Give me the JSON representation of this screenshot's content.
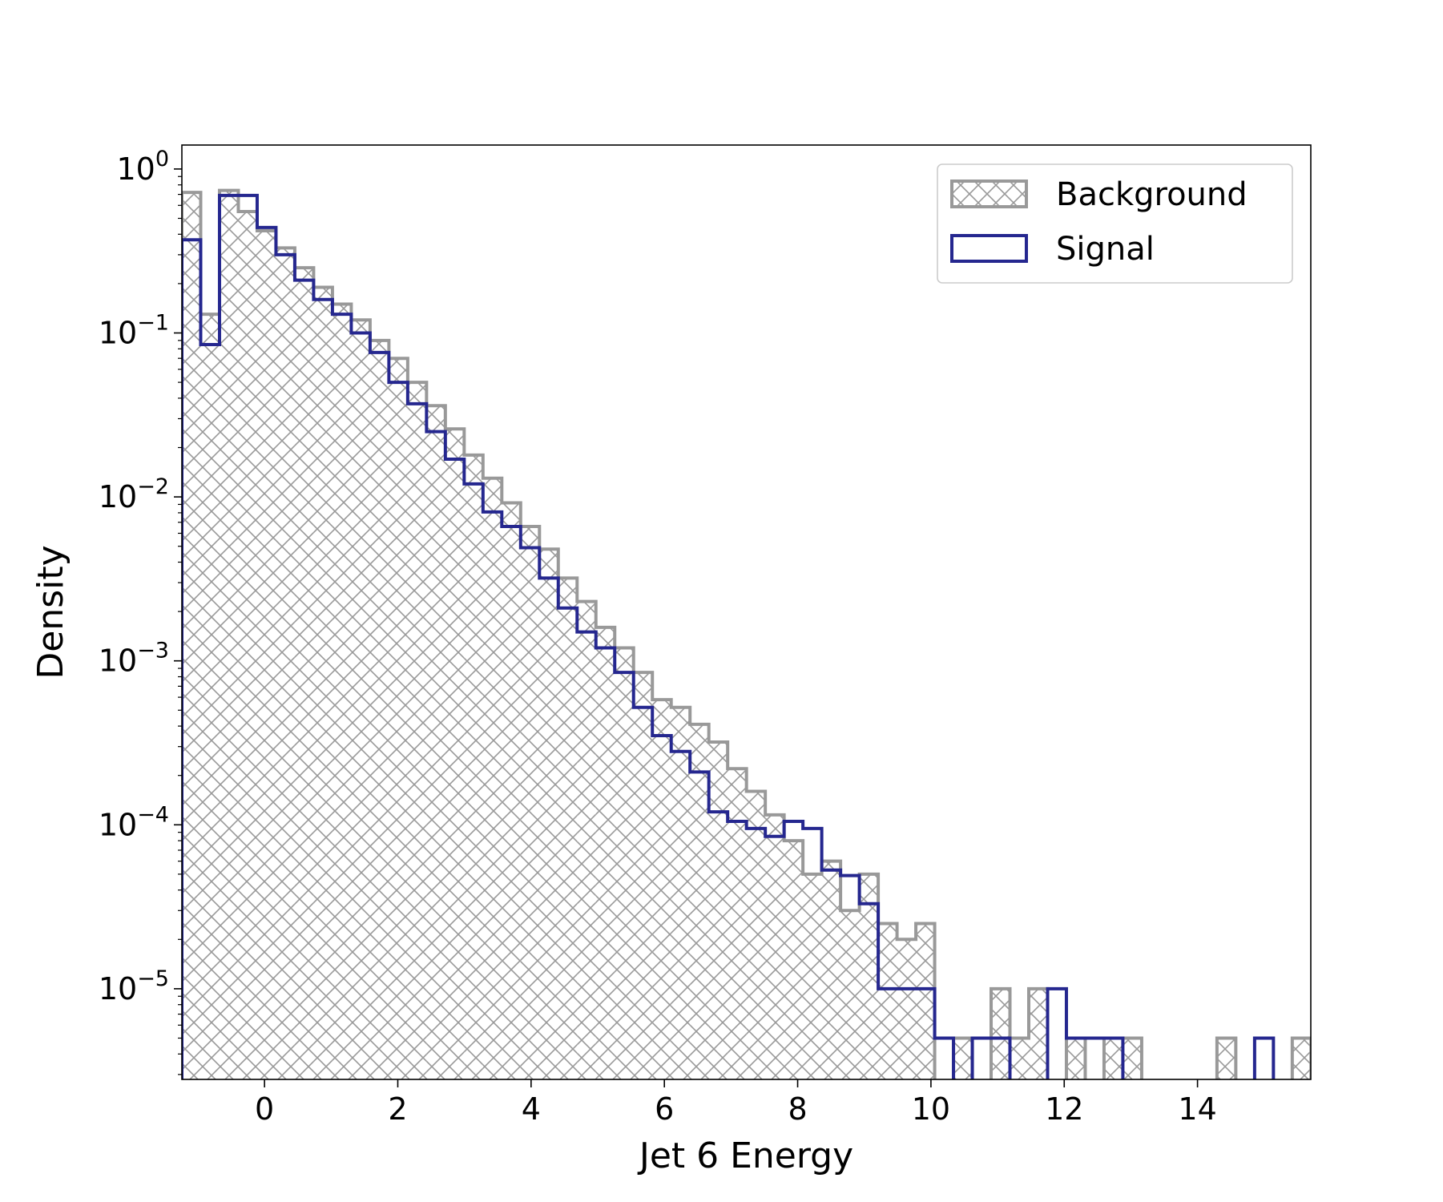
{
  "colors": {
    "background": "#999999",
    "signal": "#25278f",
    "frame": "#000000"
  },
  "chart_data": {
    "type": "histogram",
    "title": "",
    "xlabel": "Jet 6 Energy",
    "ylabel": "Density",
    "x_scale": "linear",
    "y_scale": "log",
    "xlim": [
      -1.24,
      15.7
    ],
    "ylim": [
      2.8e-06,
      1.4
    ],
    "grid": false,
    "legend_placement": "top-right",
    "x_ticks": [
      0,
      2,
      4,
      6,
      8,
      10,
      12,
      14
    ],
    "x_tick_labels": [
      "0",
      "2",
      "4",
      "6",
      "8",
      "10",
      "12",
      "14"
    ],
    "y_ticks": [
      1,
      0.1,
      0.01,
      0.001,
      0.0001,
      1e-05
    ],
    "y_tick_labels": [
      {
        "base": "10",
        "exp": "0"
      },
      {
        "base": "10",
        "exp": "−1"
      },
      {
        "base": "10",
        "exp": "−2"
      },
      {
        "base": "10",
        "exp": "−3"
      },
      {
        "base": "10",
        "exp": "−4"
      },
      {
        "base": "10",
        "exp": "−5"
      }
    ],
    "bin_edges_start": -1.24,
    "bin_width": 0.2824,
    "series": [
      {
        "name": "Background",
        "style": "hatched-step",
        "values": [
          0.72,
          0.13,
          0.74,
          0.55,
          0.42,
          0.33,
          0.25,
          0.19,
          0.15,
          0.12,
          0.09,
          0.07,
          0.05,
          0.036,
          0.026,
          0.018,
          0.013,
          0.0092,
          0.0066,
          0.0048,
          0.0032,
          0.0023,
          0.0016,
          0.0012,
          0.00085,
          0.00058,
          0.00052,
          0.00041,
          0.00032,
          0.00022,
          0.00016,
          0.000115,
          8e-05,
          5e-05,
          6e-05,
          3e-05,
          5e-05,
          2.5e-05,
          2e-05,
          2.5e-05,
          0,
          5e-06,
          0,
          1e-05,
          5e-06,
          1e-05,
          0,
          5e-06,
          0,
          5e-06,
          5e-06,
          0,
          0,
          0,
          0,
          5e-06,
          0,
          0,
          0,
          5e-06
        ]
      },
      {
        "name": "Signal",
        "style": "step",
        "values": [
          0.37,
          0.085,
          0.69,
          0.69,
          0.44,
          0.3,
          0.21,
          0.16,
          0.13,
          0.1,
          0.076,
          0.05,
          0.037,
          0.025,
          0.017,
          0.012,
          0.0081,
          0.0066,
          0.0049,
          0.0032,
          0.0021,
          0.0015,
          0.0012,
          0.00085,
          0.00052,
          0.00035,
          0.00028,
          0.00021,
          0.00012,
          0.000105,
          9.5e-05,
          8.5e-05,
          0.000105,
          9.5e-05,
          5.3e-05,
          4.9e-05,
          3.3e-05,
          1e-05,
          1e-05,
          1e-05,
          5e-06,
          0,
          5e-06,
          5e-06,
          0,
          0,
          1e-05,
          5e-06,
          5e-06,
          5e-06,
          0,
          0,
          0,
          0,
          0,
          0,
          0,
          5e-06
        ]
      }
    ]
  }
}
